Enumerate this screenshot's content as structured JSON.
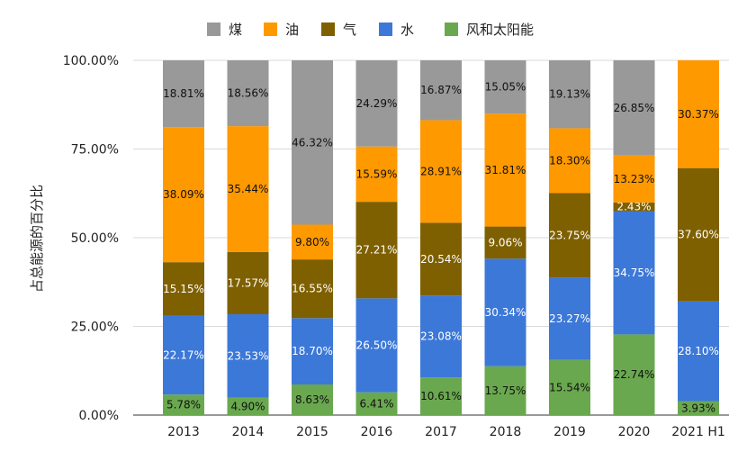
{
  "chart_data": {
    "type": "bar",
    "stacked": true,
    "title": "",
    "xlabel": "",
    "ylabel": "占总能源的百分比",
    "ylim": [
      0,
      100
    ],
    "y_ticks": [
      "0.00%",
      "25.00%",
      "50.00%",
      "75.00%",
      "100.00%"
    ],
    "grid": true,
    "legend_position": "top",
    "categories": [
      "2013",
      "2014",
      "2015",
      "2016",
      "2017",
      "2018",
      "2019",
      "2020",
      "2021 H1"
    ],
    "series": [
      {
        "name": "风和太阳能",
        "color": "#6aa84f",
        "label_color": "#111111",
        "values": [
          5.78,
          4.9,
          8.63,
          6.41,
          10.61,
          13.75,
          15.54,
          22.74,
          3.93
        ],
        "labels": [
          "5.78%",
          "4.90%",
          "8.63%",
          "6.41%",
          "10.61%",
          "13.75%",
          "15.54%",
          "22.74%",
          "3.93%"
        ]
      },
      {
        "name": "水",
        "color": "#3c78d8",
        "label_color": "#ffffff",
        "values": [
          22.17,
          23.53,
          18.7,
          26.5,
          23.08,
          30.34,
          23.27,
          34.75,
          28.1
        ],
        "labels": [
          "22.17%",
          "23.53%",
          "18.70%",
          "26.50%",
          "23.08%",
          "30.34%",
          "23.27%",
          "34.75%",
          "28.10%"
        ]
      },
      {
        "name": "气",
        "color": "#7f6000",
        "label_color": "#ffffff",
        "values": [
          15.15,
          17.57,
          16.55,
          27.21,
          20.54,
          9.06,
          23.75,
          2.43,
          37.6
        ],
        "labels": [
          "15.15%",
          "17.57%",
          "16.55%",
          "27.21%",
          "20.54%",
          "9.06%",
          "23.75%",
          "2.43%",
          "37.60%"
        ]
      },
      {
        "name": "油",
        "color": "#ff9900",
        "label_color": "#111111",
        "values": [
          38.09,
          35.44,
          9.8,
          15.59,
          28.91,
          31.81,
          18.3,
          13.23,
          30.37
        ],
        "labels": [
          "38.09%",
          "35.44%",
          "9.80%",
          "15.59%",
          "28.91%",
          "31.81%",
          "18.30%",
          "13.23%",
          "30.37%"
        ]
      },
      {
        "name": "煤",
        "color": "#999999",
        "label_color": "#111111",
        "values": [
          18.81,
          18.56,
          46.32,
          24.29,
          16.87,
          15.05,
          19.13,
          26.85,
          0
        ],
        "labels": [
          "18.81%",
          "18.56%",
          "46.32%",
          "24.29%",
          "16.87%",
          "15.05%",
          "19.13%",
          "26.85%",
          ""
        ]
      }
    ],
    "legend_order": [
      "煤",
      "油",
      "气",
      "水",
      "风和太阳能"
    ]
  }
}
